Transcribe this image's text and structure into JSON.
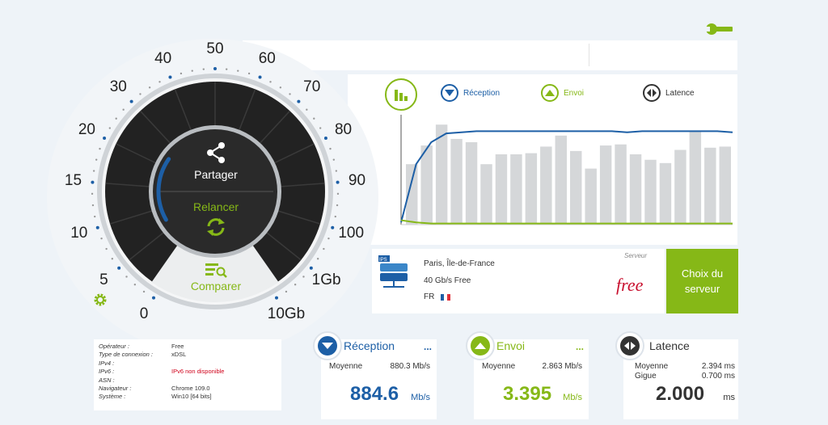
{
  "colors": {
    "accent_green": "#86b817",
    "accent_blue": "#1d5fa6",
    "bg": "#eef3f8",
    "dial_dark": "#222222"
  },
  "gauge": {
    "ticks": [
      "0",
      "5",
      "10",
      "15",
      "20",
      "30",
      "40",
      "50",
      "60",
      "70",
      "80",
      "90",
      "100",
      "1Gb",
      "10Gb"
    ],
    "share_label": "Partager",
    "restart_label": "Relancer",
    "compare_label": "Comparer"
  },
  "legend": {
    "reception": "Réception",
    "envoi": "Envoi",
    "latence": "Latence"
  },
  "chart_data": {
    "type": "bar",
    "bars": [
      0.55,
      0.72,
      0.91,
      0.78,
      0.75,
      0.55,
      0.64,
      0.64,
      0.65,
      0.71,
      0.81,
      0.67,
      0.51,
      0.72,
      0.73,
      0.64,
      0.59,
      0.56,
      0.68,
      0.85,
      0.7,
      0.71
    ],
    "reception_line": [
      0.02,
      0.55,
      0.75,
      0.83,
      0.84,
      0.85,
      0.85,
      0.85,
      0.85,
      0.85,
      0.85,
      0.85,
      0.85,
      0.85,
      0.85,
      0.84,
      0.85,
      0.85,
      0.85,
      0.85,
      0.85,
      0.85,
      0.84
    ],
    "envoi_line": [
      0.04,
      0.02,
      0.01,
      0.01,
      0.01,
      0.01,
      0.01,
      0.01,
      0.01,
      0.01,
      0.01,
      0.01,
      0.01,
      0.01,
      0.01,
      0.01,
      0.01,
      0.01,
      0.01,
      0.01,
      0.01,
      0.01,
      0.01
    ]
  },
  "server": {
    "location": "Paris, Île-de-France",
    "capacity": "40 Gb/s Free",
    "country": "FR",
    "label": "Serveur",
    "brand": "free",
    "choose_button": "Choix du serveur"
  },
  "info": {
    "rows": [
      {
        "k": "Opérateur :",
        "v": "Free"
      },
      {
        "k": "Type de connexion :",
        "v": "xDSL"
      },
      {
        "k": "IPv4 :",
        "v": ""
      },
      {
        "k": "IPv6 :",
        "v": "IPv6 non disponible"
      },
      {
        "k": "ASN :",
        "v": ""
      },
      {
        "k": "Navigateur :",
        "v": "Chrome 109.0"
      },
      {
        "k": "Système :",
        "v": "Win10 [64 bits]"
      }
    ]
  },
  "reception": {
    "title": "Réception",
    "dots": "...",
    "avg_label": "Moyenne",
    "avg_value": "880.3 Mb/s",
    "value": "884.6",
    "unit": "Mb/s"
  },
  "envoi": {
    "title": "Envoi",
    "dots": "...",
    "avg_label": "Moyenne",
    "avg_value": "2.863 Mb/s",
    "value": "3.395",
    "unit": "Mb/s"
  },
  "latence": {
    "title": "Latence",
    "dots": "...",
    "avg_label": "Moyenne",
    "avg_value": "2.394 ms",
    "jitter_label": "Gigue",
    "jitter_value": "0.700 ms",
    "value": "2.000",
    "unit": "ms"
  }
}
